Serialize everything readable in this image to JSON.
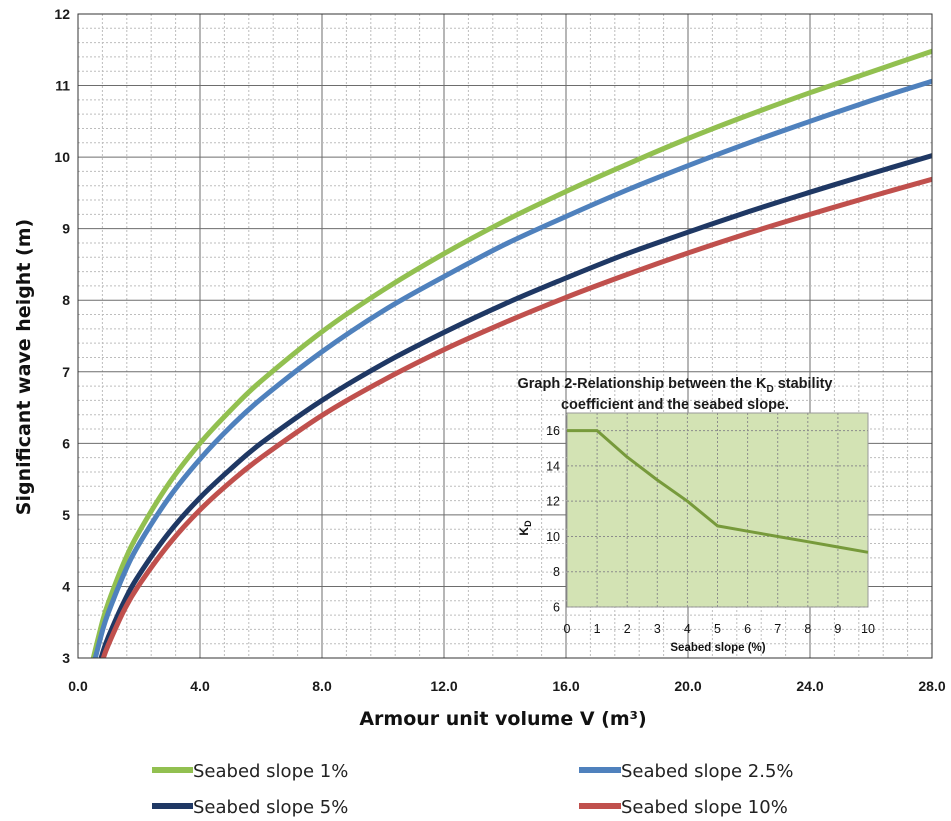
{
  "chart_data": [
    {
      "type": "line",
      "title": "",
      "xlabel": "Armour unit volume V (m³)",
      "ylabel": "Significant wave height (m)",
      "xlim": [
        0,
        28
      ],
      "ylim": [
        3,
        12
      ],
      "xticks": [
        "0.0",
        "4.0",
        "8.0",
        "12.0",
        "16.0",
        "20.0",
        "24.0",
        "28.0"
      ],
      "yticks": [
        "3",
        "4",
        "5",
        "6",
        "7",
        "8",
        "9",
        "10",
        "11",
        "12"
      ],
      "grid": true,
      "legend_position": "bottom",
      "x": [
        0.5,
        0.8,
        1,
        1.5,
        2,
        3,
        4,
        5,
        6,
        8,
        10,
        12,
        14,
        16,
        18,
        20,
        22,
        24,
        26,
        28
      ],
      "series": [
        {
          "name": "Seabed slope 1%",
          "color": "#92c050",
          "values": [
            3.0,
            3.51,
            3.78,
            4.33,
            4.76,
            5.45,
            6.0,
            6.46,
            6.87,
            7.56,
            8.14,
            8.65,
            9.11,
            9.52,
            9.9,
            10.26,
            10.59,
            10.9,
            11.19,
            11.48
          ]
        },
        {
          "name": "Seabed slope 2.5%",
          "color": "#4f81bd",
          "values": [
            2.89,
            3.38,
            3.64,
            4.17,
            4.59,
            5.25,
            5.78,
            6.23,
            6.62,
            7.28,
            7.85,
            8.33,
            8.78,
            9.17,
            9.54,
            9.88,
            10.2,
            10.5,
            10.79,
            11.06
          ]
        },
        {
          "name": "Seabed slope 5%",
          "color": "#1f3864",
          "values": [
            2.62,
            3.06,
            3.3,
            3.78,
            4.16,
            4.76,
            5.24,
            5.64,
            6.0,
            6.6,
            7.11,
            7.55,
            7.95,
            8.31,
            8.65,
            8.95,
            9.24,
            9.51,
            9.77,
            10.02
          ]
        },
        {
          "name": "Seabed slope 10%",
          "color": "#c0504d",
          "values": [
            2.53,
            2.96,
            3.19,
            3.66,
            4.02,
            4.6,
            5.07,
            5.46,
            5.8,
            6.39,
            6.88,
            7.31,
            7.69,
            8.04,
            8.36,
            8.66,
            8.94,
            9.2,
            9.45,
            9.69
          ]
        }
      ]
    },
    {
      "type": "line",
      "title_parts": {
        "line1_before": "Graph 2-Relationship between the K",
        "line1_sub": "D",
        "line1_after": " stability",
        "line2": "coefficient  and the seabed slope."
      },
      "xlabel": "Seabed slope (%)",
      "ylabel_main": "K",
      "ylabel_sub": "D",
      "xlim": [
        0,
        10
      ],
      "ylim": [
        6,
        17
      ],
      "xticks": [
        "0",
        "1",
        "2",
        "3",
        "4",
        "5",
        "6",
        "7",
        "8",
        "9",
        "10"
      ],
      "yticks": [
        "6",
        "8",
        "10",
        "12",
        "14",
        "16"
      ],
      "grid": true,
      "background": "#d3e3b4",
      "line_color": "#779a3b",
      "x": [
        0,
        1,
        2,
        3,
        4,
        5,
        6,
        7,
        8,
        9,
        10
      ],
      "values": [
        16,
        16,
        14.5,
        13.2,
        12.0,
        10.6,
        10.3,
        10.0,
        9.7,
        9.4,
        9.1
      ]
    }
  ],
  "legend": [
    {
      "label": "Seabed slope 1%",
      "color": "#92c050"
    },
    {
      "label": "Seabed slope 2.5%",
      "color": "#4f81bd"
    },
    {
      "label": "Seabed slope 5%",
      "color": "#1f3864"
    },
    {
      "label": "Seabed slope 10%",
      "color": "#c0504d"
    }
  ]
}
